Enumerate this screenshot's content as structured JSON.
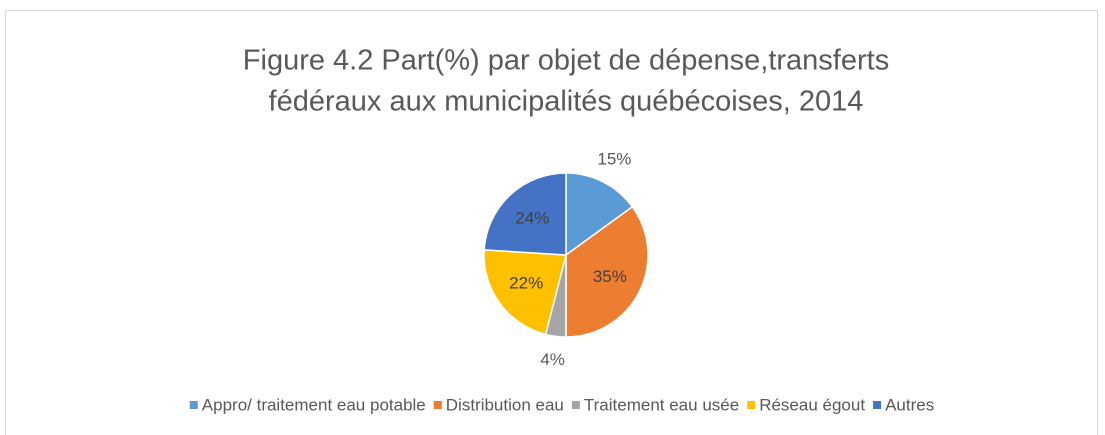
{
  "chart_data": {
    "type": "pie",
    "title": [
      "Figure 4.2 Part(%) par objet de dépense,transferts",
      "fédéraux aux municipalités québécoises, 2014"
    ],
    "categories": [
      "Appro/ traitement eau potable",
      "Distribution eau",
      "Traitement eau usée",
      "Réseau égout",
      "Autres"
    ],
    "values": [
      15,
      35,
      4,
      22,
      24
    ],
    "value_labels": [
      "15%",
      "35%",
      "4%",
      "22%",
      "24%"
    ],
    "colors": [
      "#5b9bd5",
      "#ed7d31",
      "#a5a5a5",
      "#ffc000",
      "#4472c4"
    ],
    "legend": "bottom"
  }
}
